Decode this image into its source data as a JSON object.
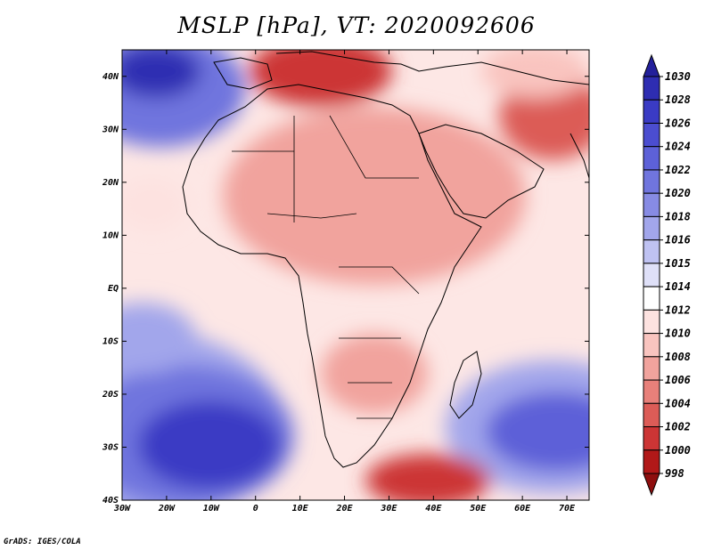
{
  "title": "MSLP [hPa], VT: 2020092606",
  "credit": "GrADS: IGES/COLA",
  "axes": {
    "lat_labels": [
      "40N",
      "30N",
      "20N",
      "10N",
      "EQ",
      "10S",
      "20S",
      "30S",
      "40S"
    ],
    "lat_values": [
      40,
      30,
      20,
      10,
      0,
      -10,
      -20,
      -30,
      -40
    ],
    "lon_labels": [
      "30W",
      "20W",
      "10W",
      "0",
      "10E",
      "20E",
      "30E",
      "40E",
      "50E",
      "60E",
      "70E"
    ],
    "lon_values": [
      -30,
      -20,
      -10,
      0,
      10,
      20,
      30,
      40,
      50,
      60,
      70
    ]
  },
  "colorbar": {
    "labels": [
      "1030",
      "1028",
      "1026",
      "1024",
      "1022",
      "1020",
      "1018",
      "1016",
      "1015",
      "1014",
      "1012",
      "1010",
      "1008",
      "1006",
      "1004",
      "1002",
      "1000",
      "998"
    ],
    "colors": [
      "#23209b",
      "#2e2db2",
      "#3a3bc4",
      "#4b4dd0",
      "#5d61d8",
      "#7075de",
      "#878be4",
      "#a2a6eb",
      "#bfc2f2",
      "#dfe0f8",
      "#ffffff",
      "#fde2e0",
      "#f9c4bf",
      "#f1a39d",
      "#e8807a",
      "#dc5c57",
      "#cc3535",
      "#b11818",
      "#8e0e0e"
    ]
  }
}
